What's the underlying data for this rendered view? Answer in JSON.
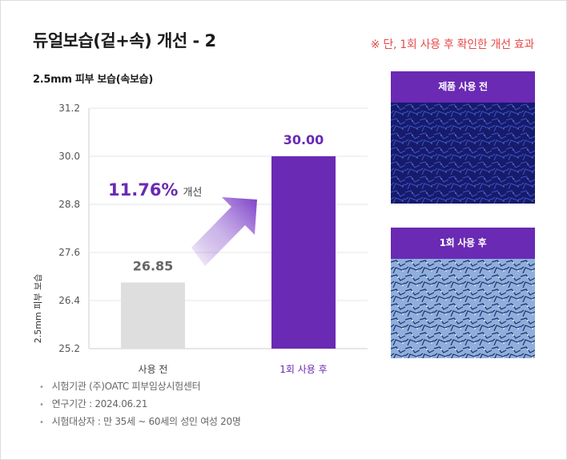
{
  "header": {
    "title": "듀얼보습(겉+속) 개선 - 2",
    "note": "※ 단, 1회 사용 후 확인한 개선 효과"
  },
  "chart_data": {
    "type": "bar",
    "title": "2.5mm 피부 보습(속보습)",
    "ylabel": "2.5mm 피부 보습",
    "xlabel": "",
    "categories": [
      "사용 전",
      "1회 사용 후"
    ],
    "values": [
      26.85,
      30.0
    ],
    "value_labels": [
      "26.85",
      "30.00"
    ],
    "ylim": [
      25.2,
      31.2
    ],
    "yticks": [
      "25.2",
      "26.4",
      "27.6",
      "28.8",
      "30.0",
      "31.2"
    ],
    "grid": true,
    "bar_colors": [
      "#dedede",
      "#6a2ab4"
    ],
    "value_label_colors": [
      "#666666",
      "#6a2ab4"
    ],
    "category_label_colors": [
      "#444444",
      "#6a2ab4"
    ],
    "annotation": {
      "value": "11.76%",
      "text": "개선",
      "color": "#6a2ab4"
    }
  },
  "footnotes": [
    "시험기관 (주)OATC 피부임상시험센터",
    "연구기간 : 2024.06.21",
    "시험대상자 : 만 35세 ~ 60세의 성인 여성 20명"
  ],
  "photos": [
    {
      "label": "제품 사용 전",
      "image": "skin-microscopy-before-image"
    },
    {
      "label": "1회 사용 후",
      "image": "skin-microscopy-after-image"
    }
  ],
  "colors": {
    "accent": "#6a2ab4",
    "note": "#e84a4a"
  }
}
